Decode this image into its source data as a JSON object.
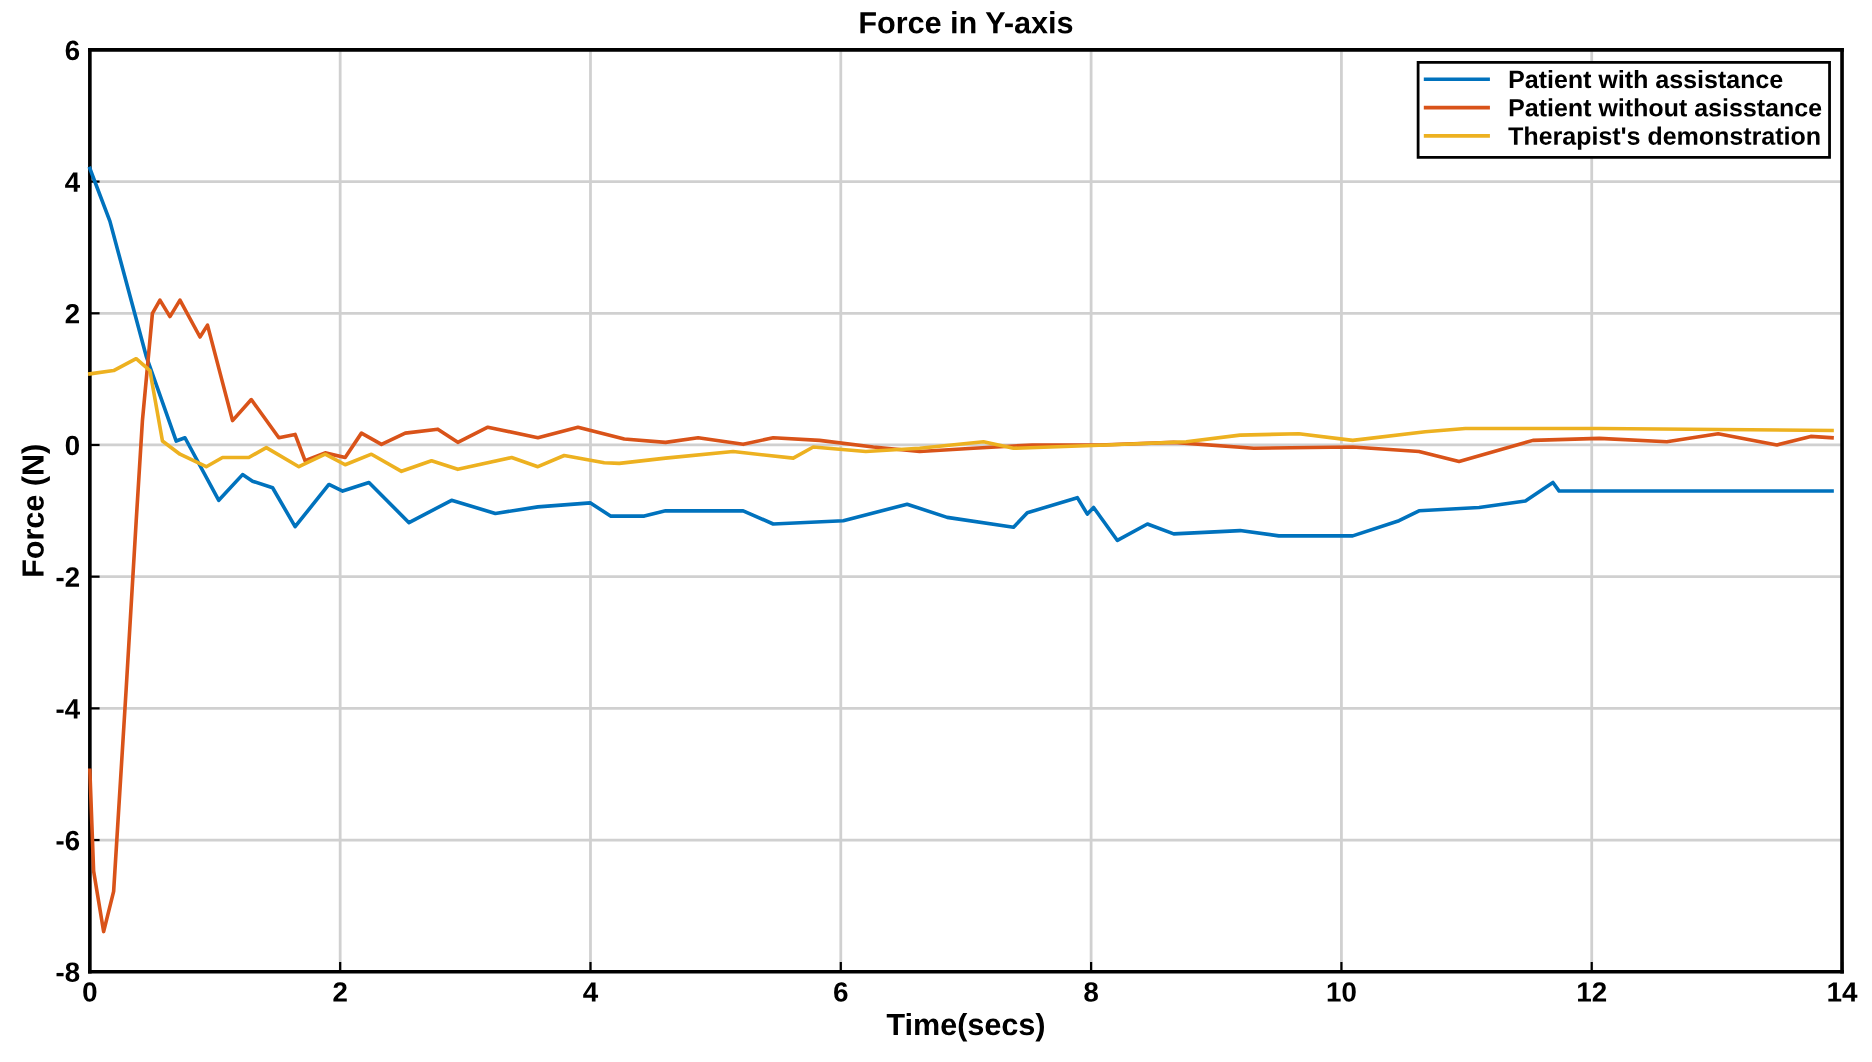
{
  "chart_data": {
    "type": "line",
    "title": "Force in Y-axis",
    "xlabel": "Time(secs)",
    "ylabel": "Force (N)",
    "xlim": [
      0,
      14
    ],
    "ylim": [
      -8,
      6
    ],
    "xticks": [
      0,
      2,
      4,
      6,
      8,
      10,
      12,
      14
    ],
    "yticks": [
      -8,
      -6,
      -4,
      -2,
      0,
      2,
      4,
      6
    ],
    "grid": true,
    "legend": "top right",
    "line_style": "solid",
    "marker": "none",
    "series": [
      {
        "name": "Patient with assistance",
        "color": "#0072bd",
        "x": [
          0,
          0.16,
          0.45,
          0.69,
          0.76,
          1.03,
          1.22,
          1.3,
          1.46,
          1.64,
          1.91,
          2.02,
          2.23,
          2.55,
          2.89,
          3.24,
          3.58,
          4.0,
          4.16,
          4.43,
          4.6,
          5.22,
          5.46,
          6.02,
          6.53,
          6.85,
          7.38,
          7.49,
          7.89,
          7.97,
          8.02,
          8.21,
          8.45,
          8.66,
          9.19,
          9.5,
          10.09,
          10.46,
          10.62,
          11.1,
          11.47,
          11.69,
          11.74,
          13.92
        ],
        "values": [
          4.2,
          3.4,
          1.35,
          0.06,
          0.11,
          -0.84,
          -0.45,
          -0.55,
          -0.65,
          -1.24,
          -0.6,
          -0.7,
          -0.57,
          -1.18,
          -0.84,
          -1.04,
          -0.94,
          -0.88,
          -1.08,
          -1.08,
          -1.0,
          -1.0,
          -1.2,
          -1.15,
          -0.9,
          -1.1,
          -1.25,
          -1.03,
          -0.8,
          -1.05,
          -0.95,
          -1.45,
          -1.2,
          -1.35,
          -1.3,
          -1.38,
          -1.38,
          -1.15,
          -1.0,
          -0.95,
          -0.85,
          -0.57,
          -0.7,
          -0.7
        ]
      },
      {
        "name": "Patient without asisstance",
        "color": "#d95319",
        "x": [
          0,
          0.03,
          0.11,
          0.19,
          0.29,
          0.37,
          0.42,
          0.5,
          0.56,
          0.64,
          0.72,
          0.88,
          0.94,
          1.14,
          1.29,
          1.51,
          1.64,
          1.72,
          1.88,
          2.04,
          2.17,
          2.33,
          2.52,
          2.78,
          2.94,
          3.18,
          3.58,
          3.9,
          4.27,
          4.6,
          4.86,
          5.22,
          5.46,
          5.83,
          6.26,
          6.63,
          7.06,
          7.53,
          8.07,
          8.66,
          9.3,
          10.09,
          10.62,
          10.94,
          11.53,
          12.06,
          12.6,
          13.01,
          13.48,
          13.75,
          13.92
        ],
        "values": [
          -4.94,
          -6.47,
          -7.39,
          -6.78,
          -3.71,
          -1.16,
          0.37,
          2.0,
          2.2,
          1.95,
          2.2,
          1.64,
          1.82,
          0.37,
          0.69,
          0.11,
          0.16,
          -0.24,
          -0.12,
          -0.19,
          0.18,
          0.01,
          0.18,
          0.24,
          0.04,
          0.27,
          0.11,
          0.27,
          0.09,
          0.04,
          0.11,
          0.01,
          0.11,
          0.07,
          -0.03,
          -0.1,
          -0.05,
          0.0,
          0.0,
          0.04,
          -0.05,
          -0.03,
          -0.1,
          -0.25,
          0.07,
          0.1,
          0.05,
          0.17,
          0.0,
          0.13,
          0.11
        ]
      },
      {
        "name": "Therapist's demonstration",
        "color": "#edb120",
        "x": [
          0,
          0.19,
          0.37,
          0.48,
          0.58,
          0.72,
          0.93,
          1.06,
          1.27,
          1.41,
          1.67,
          1.88,
          2.04,
          2.25,
          2.49,
          2.73,
          2.94,
          3.37,
          3.58,
          3.79,
          4.11,
          4.23,
          4.6,
          5.14,
          5.62,
          5.78,
          6.2,
          6.63,
          7.14,
          7.38,
          8.12,
          8.76,
          9.19,
          9.66,
          10.09,
          10.67,
          10.99,
          12.06,
          13.92
        ],
        "values": [
          1.08,
          1.13,
          1.31,
          1.13,
          0.06,
          -0.14,
          -0.33,
          -0.19,
          -0.19,
          -0.04,
          -0.33,
          -0.14,
          -0.3,
          -0.14,
          -0.4,
          -0.24,
          -0.37,
          -0.19,
          -0.33,
          -0.16,
          -0.27,
          -0.28,
          -0.2,
          -0.1,
          -0.2,
          -0.03,
          -0.1,
          -0.05,
          0.05,
          -0.05,
          0.0,
          0.05,
          0.15,
          0.17,
          0.07,
          0.2,
          0.25,
          0.25,
          0.22
        ]
      }
    ]
  }
}
